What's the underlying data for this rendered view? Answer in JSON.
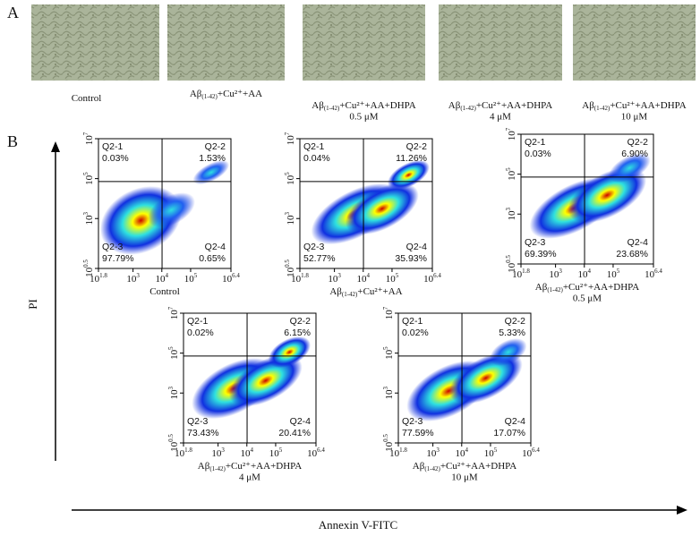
{
  "panel_a": {
    "label": "A",
    "images": [
      {
        "prefix": "Control",
        "sub": "",
        "suffix": "",
        "line2": ""
      },
      {
        "prefix": "Aβ",
        "sub": "(1-42)",
        "suffix": "+Cu²⁺+AA",
        "line2": ""
      },
      {
        "prefix": "Aβ",
        "sub": "(1-42)",
        "suffix": "+Cu²⁺+AA+DHPA",
        "line2": "0.5 μM"
      },
      {
        "prefix": "Aβ",
        "sub": "(1-42)",
        "suffix": "+Cu²⁺+AA+DHPA",
        "line2": "4 μM"
      },
      {
        "prefix": "Aβ",
        "sub": "(1-42)",
        "suffix": "+Cu²⁺+AA+DHPA",
        "line2": "10 μM"
      }
    ]
  },
  "panel_b": {
    "label": "B",
    "y_axis_label": "PI",
    "x_axis_label": "Annexin V-FITC",
    "x_ticks": [
      {
        "base": "10",
        "exp": "1.8"
      },
      {
        "base": "10",
        "exp": "3"
      },
      {
        "base": "10",
        "exp": "4"
      },
      {
        "base": "10",
        "exp": "5"
      },
      {
        "base": "10",
        "exp": "6.4"
      }
    ],
    "y_ticks": [
      {
        "base": "10",
        "exp": "0.5"
      },
      {
        "base": "10",
        "exp": "3"
      },
      {
        "base": "10",
        "exp": "5"
      },
      {
        "base": "10",
        "exp": "7"
      }
    ],
    "plots": [
      {
        "q1": "Q2-1",
        "p1": "0.03%",
        "q2": "Q2-2",
        "p2": "1.53%",
        "q3": "Q2-3",
        "p3": "97.79%",
        "q4": "Q2-4",
        "p4": "0.65%",
        "prefix": "Control",
        "sub": "",
        "suffix": "",
        "line2": ""
      },
      {
        "q1": "Q2-1",
        "p1": "0.04%",
        "q2": "Q2-2",
        "p2": "11.26%",
        "q3": "Q2-3",
        "p3": "52.77%",
        "q4": "Q2-4",
        "p4": "35.93%",
        "prefix": "Aβ",
        "sub": "(1-42)",
        "suffix": "+Cu²⁺+AA",
        "line2": ""
      },
      {
        "q1": "Q2-1",
        "p1": "0.03%",
        "q2": "Q2-2",
        "p2": "6.90%",
        "q3": "Q2-3",
        "p3": "69.39%",
        "q4": "Q2-4",
        "p4": "23.68%",
        "prefix": "Aβ",
        "sub": "(1-42)",
        "suffix": "+Cu²⁺+AA+DHPA",
        "line2": "0.5 μM"
      },
      {
        "q1": "Q2-1",
        "p1": "0.02%",
        "q2": "Q2-2",
        "p2": "6.15%",
        "q3": "Q2-3",
        "p3": "73.43%",
        "q4": "Q2-4",
        "p4": "20.41%",
        "prefix": "Aβ",
        "sub": "(1-42)",
        "suffix": "+Cu²⁺+AA+DHPA",
        "line2": "4 μM"
      },
      {
        "q1": "Q2-1",
        "p1": "0.02%",
        "q2": "Q2-2",
        "p2": "5.33%",
        "q3": "Q2-3",
        "p3": "77.59%",
        "q4": "Q2-4",
        "p4": "17.07%",
        "prefix": "Aβ",
        "sub": "(1-42)",
        "suffix": "+Cu²⁺+AA+DHPA",
        "line2": "10 μM"
      }
    ]
  }
}
